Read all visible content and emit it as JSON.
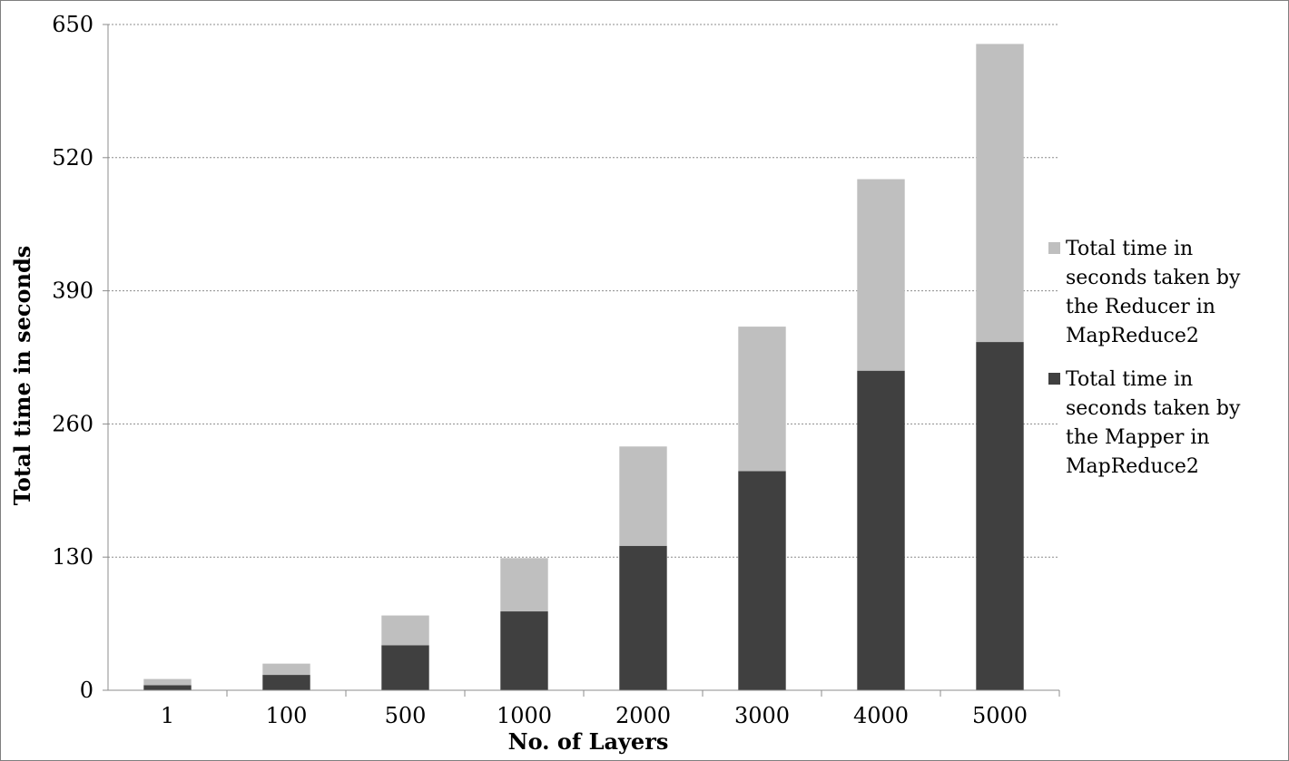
{
  "chart_data": {
    "type": "bar",
    "stacked": true,
    "title": "",
    "xlabel": "No. of Layers",
    "ylabel": "Total time in seconds",
    "categories": [
      "1",
      "100",
      "500",
      "1000",
      "2000",
      "3000",
      "4000",
      "5000"
    ],
    "ylim": [
      0,
      650
    ],
    "yticks": [
      "0",
      "130",
      "260",
      "390",
      "520",
      "650"
    ],
    "grid": true,
    "legend_position": "right",
    "series": [
      {
        "name": "Total time in seconds taken by the Mapper in MapReduce2",
        "color": "#404040",
        "values": [
          5,
          15,
          44,
          77,
          141,
          214,
          312,
          340
        ]
      },
      {
        "name": "Total time in seconds taken by the Reducer in MapReduce2",
        "color": "#bfbfbf",
        "values": [
          6,
          11,
          29,
          52,
          97,
          141,
          187,
          291
        ]
      }
    ]
  }
}
